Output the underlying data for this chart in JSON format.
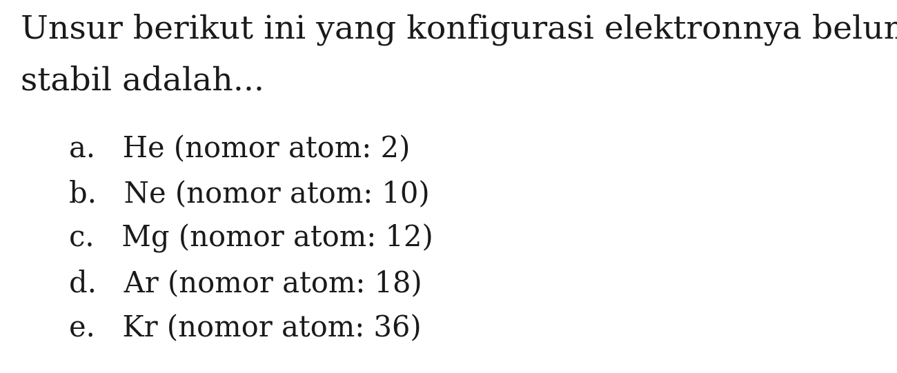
{
  "title_line1": "Unsur berikut ini yang konfigurasi elektronnya belum",
  "title_line2": "stabil adalah...",
  "options": [
    "a.   He (nomor atom: 2)",
    "b.   Ne (nomor atom: 10)",
    "c.   Mg (nomor atom: 12)",
    "d.   Ar (nomor atom: 18)",
    "e.   Kr (nomor atom: 36)"
  ],
  "background_color": "#ffffff",
  "text_color": "#1a1a1a",
  "title_fontsize": 34,
  "option_fontsize": 30,
  "font_family": "DejaVu Serif"
}
